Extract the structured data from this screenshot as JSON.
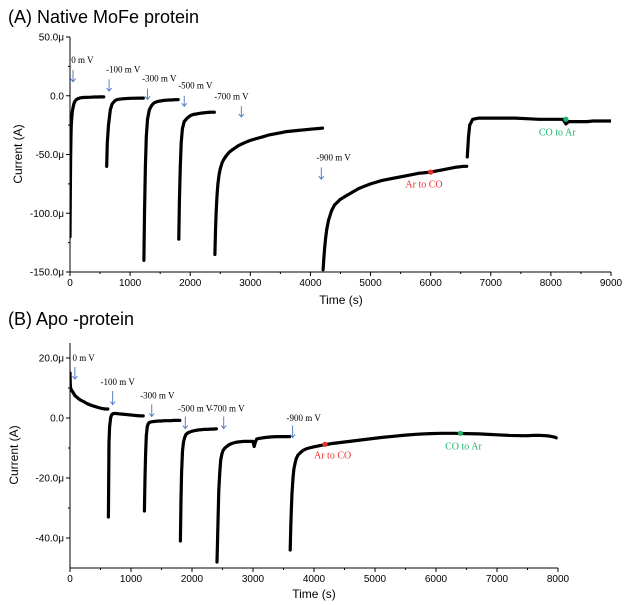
{
  "chart_data": [
    {
      "type": "scatter",
      "title": "(A) Native MoFe protein",
      "xlabel": "Time (s)",
      "ylabel": "Current (A)",
      "xlim": [
        0,
        9000
      ],
      "ylim": [
        -150,
        50
      ],
      "y_unit_suffix": "μ",
      "x_ticks": [
        "0",
        "1000",
        "2000",
        "3000",
        "4000",
        "5000",
        "6000",
        "7000",
        "8000",
        "9000"
      ],
      "y_ticks": [
        "-150.0μ",
        "-100.0μ",
        "-50.0μ",
        "0.0",
        "50.0μ"
      ],
      "y_tick_values": [
        -150,
        -100,
        -50,
        0,
        50
      ],
      "series_color": "#000000",
      "segments": [
        {
          "x": [
            0,
            3,
            6,
            10,
            15,
            20,
            30,
            40,
            55,
            70,
            85,
            100,
            130,
            160,
            200,
            250,
            300,
            350,
            400,
            450,
            500,
            550,
            560
          ],
          "y": [
            -120,
            -95,
            -75,
            -55,
            -38,
            -26,
            -18,
            -13,
            -9,
            -6,
            -4.5,
            -3.5,
            -2.5,
            -2,
            -1.6,
            -1.4,
            -1.3,
            -1.2,
            -1.1,
            -1.1,
            -1,
            -1,
            -1
          ]
        },
        {
          "x": [
            610,
            620,
            640,
            670,
            700,
            750,
            800,
            900,
            1000,
            1100,
            1200,
            1220
          ],
          "y": [
            -60,
            -40,
            -25,
            -12,
            -7,
            -4,
            -3,
            -2.5,
            -2.2,
            -2.1,
            -2,
            -2
          ]
        },
        {
          "x": [
            1230,
            1240,
            1255,
            1270,
            1290,
            1320,
            1360,
            1400,
            1450,
            1500,
            1550,
            1600,
            1650,
            1700,
            1750,
            1800
          ],
          "y": [
            -140,
            -100,
            -60,
            -35,
            -20,
            -12,
            -8,
            -6,
            -5,
            -4.5,
            -4,
            -3.8,
            -3.6,
            -3.5,
            -3.4,
            -3.3
          ]
        },
        {
          "x": [
            1810,
            1820,
            1835,
            1850,
            1870,
            1900,
            1950,
            2000,
            2050,
            2100,
            2150,
            2200,
            2250,
            2300,
            2350,
            2400
          ],
          "y": [
            -122,
            -90,
            -60,
            -40,
            -28,
            -22,
            -19,
            -17,
            -16,
            -15.5,
            -15,
            -14.7,
            -14.4,
            -14.2,
            -14,
            -14
          ]
        },
        {
          "x": [
            2410,
            2420,
            2430,
            2445,
            2460,
            2480,
            2500,
            2530,
            2560,
            2600,
            2650,
            2700,
            2800,
            2900,
            3000,
            3100,
            3200,
            3300,
            3400,
            3500,
            3600,
            3700,
            3800,
            3900,
            4000,
            4100,
            4200
          ],
          "y": [
            -135,
            -115,
            -100,
            -85,
            -75,
            -67,
            -62,
            -57,
            -54,
            -51,
            -48,
            -46,
            -42.5,
            -40,
            -38,
            -36.5,
            -35,
            -33.5,
            -32.5,
            -31.5,
            -30.5,
            -30,
            -29.5,
            -29,
            -28.5,
            -28,
            -27.5
          ]
        },
        {
          "x": [
            4210,
            4220,
            4235,
            4250,
            4270,
            4300,
            4350,
            4400,
            4500,
            4600,
            4700,
            4800,
            4900,
            5000,
            5200,
            5400,
            5600,
            5800,
            6000,
            6200,
            6400,
            6550,
            6600
          ],
          "y": [
            -148,
            -140,
            -130,
            -122,
            -114,
            -106,
            -98,
            -93,
            -88,
            -85,
            -82,
            -79,
            -77,
            -75,
            -72,
            -70,
            -68,
            -66,
            -65,
            -63,
            -61,
            -60,
            -60
          ]
        },
        {
          "x": [
            6610,
            6630,
            6650,
            6680,
            6700,
            6750,
            6800,
            6900,
            7000,
            7200,
            7400,
            7600,
            7800,
            8000,
            8200,
            8250,
            8270,
            8300,
            8400,
            8500,
            8600,
            8700,
            8800,
            8900,
            9000
          ],
          "y": [
            -52,
            -35,
            -25,
            -22,
            -20,
            -19.5,
            -19,
            -19,
            -19,
            -19,
            -19,
            -19.5,
            -20,
            -20,
            -20,
            -24,
            -23,
            -22,
            -22,
            -22,
            -22,
            -21.5,
            -21.5,
            -21.5,
            -21.5
          ]
        }
      ],
      "annotations": [
        {
          "text": "0 m V",
          "x": 20,
          "y": 28
        },
        {
          "text": "-100 m V",
          "x": 600,
          "y": 20
        },
        {
          "text": "-300 m V",
          "x": 1200,
          "y": 12
        },
        {
          "text": "-500 m V",
          "x": 1800,
          "y": 6
        },
        {
          "text": "-700 m V",
          "x": 2400,
          "y": -3
        },
        {
          "text": "-900 m V",
          "x": 4100,
          "y": -55
        }
      ],
      "arrows": [
        {
          "x": 50,
          "y1": 22,
          "y2": 12
        },
        {
          "x": 650,
          "y1": 14,
          "y2": 4
        },
        {
          "x": 1290,
          "y1": 6,
          "y2": -3
        },
        {
          "x": 1900,
          "y1": 0,
          "y2": -9
        },
        {
          "x": 2850,
          "y1": -9,
          "y2": -18
        },
        {
          "x": 4180,
          "y1": -61,
          "y2": -71
        }
      ],
      "gas_events": [
        {
          "text": "Ar to CO",
          "x": 6000,
          "y": -65,
          "label_x": 5580,
          "label_y": -78,
          "color": "#e8312a"
        },
        {
          "text": "CO to Ar",
          "x": 8250,
          "y": -20,
          "label_x": 7800,
          "label_y": -34,
          "color": "#1fb56b"
        }
      ]
    },
    {
      "type": "scatter",
      "title": "(B) Apo -protein",
      "xlabel": "Time (s)",
      "ylabel": "Current (A)",
      "xlim": [
        0,
        8000
      ],
      "ylim": [
        -50,
        25
      ],
      "y_unit_suffix": "μ",
      "x_ticks": [
        "0",
        "1000",
        "2000",
        "3000",
        "4000",
        "5000",
        "6000",
        "7000",
        "8000"
      ],
      "y_ticks": [
        "-40.0μ",
        "-20.0μ",
        "0.0",
        "20.0μ"
      ],
      "y_tick_values": [
        -40,
        -20,
        0,
        20
      ],
      "series_color": "#000000",
      "segments": [
        {
          "x": [
            0,
            5,
            10,
            20,
            35,
            50,
            80,
            120,
            170,
            220,
            280,
            340,
            400,
            460,
            520,
            580,
            620
          ],
          "y": [
            15,
            11,
            10,
            9.5,
            9,
            8.5,
            7.5,
            6.8,
            6,
            5.5,
            4.8,
            4.3,
            3.9,
            3.5,
            3.2,
            3,
            3
          ]
        },
        {
          "x": [
            630,
            640,
            650,
            665,
            680,
            700,
            730,
            760,
            800,
            850,
            900,
            950,
            1000,
            1050,
            1100,
            1150,
            1200
          ],
          "y": [
            -33,
            -8,
            -3,
            0,
            1,
            1.4,
            1.5,
            1.5,
            1.4,
            1.3,
            1.2,
            1.1,
            1,
            0.9,
            0.8,
            0.7,
            0.7
          ]
        },
        {
          "x": [
            1220,
            1230,
            1240,
            1250,
            1265,
            1280,
            1300,
            1330,
            1360,
            1400,
            1450,
            1500,
            1550,
            1600,
            1650,
            1700,
            1750,
            1800
          ],
          "y": [
            -31,
            -20,
            -12,
            -6,
            -3,
            -2,
            -1.5,
            -1.3,
            -1.2,
            -1.1,
            -1,
            -1,
            -0.9,
            -0.9,
            -0.9,
            -0.8,
            -0.8,
            -0.8
          ]
        },
        {
          "x": [
            1810,
            1820,
            1830,
            1845,
            1860,
            1880,
            1900,
            1930,
            1960,
            2000,
            2050,
            2100,
            2150,
            2200,
            2250,
            2300,
            2350,
            2400
          ],
          "y": [
            -41,
            -27,
            -18,
            -11,
            -8,
            -6.5,
            -5.5,
            -5,
            -4.7,
            -4.4,
            -4.2,
            -4,
            -3.9,
            -3.8,
            -3.8,
            -3.7,
            -3.7,
            -3.6
          ]
        },
        {
          "x": [
            2410,
            2420,
            2430,
            2440,
            2455,
            2470,
            2490,
            2510,
            2540,
            2570,
            2600,
            2650,
            2700,
            2750,
            2800,
            2850,
            2900,
            2950,
            3000,
            3020,
            3040,
            3060,
            3100,
            3200,
            3300,
            3400,
            3500,
            3600
          ],
          "y": [
            -48,
            -40,
            -32,
            -24,
            -18,
            -14,
            -12,
            -10.8,
            -10,
            -9.5,
            -9,
            -8.5,
            -8.2,
            -8,
            -7.9,
            -7.8,
            -7.8,
            -7.8,
            -7.8,
            -9.5,
            -8,
            -7,
            -6.8,
            -6.5,
            -6.3,
            -6.2,
            -6.2,
            -6.2
          ]
        },
        {
          "x": [
            3610,
            3620,
            3630,
            3640,
            3655,
            3670,
            3690,
            3710,
            3740,
            3780,
            3820,
            3870,
            3920,
            4000,
            4100,
            4200,
            4300,
            4500,
            4700,
            4900,
            5100,
            5300,
            5500,
            5700,
            5900,
            6100,
            6300,
            6500,
            6700,
            6900,
            7000,
            7200,
            7400,
            7500,
            7600,
            7700,
            7800,
            7850,
            7900,
            7950,
            7970
          ],
          "y": [
            -44,
            -36,
            -30,
            -25,
            -20,
            -17,
            -15,
            -13.5,
            -12.3,
            -11.5,
            -10.8,
            -10.3,
            -10,
            -9.6,
            -9.2,
            -8.8,
            -8.5,
            -8,
            -7.5,
            -7,
            -6.5,
            -6.1,
            -5.7,
            -5.4,
            -5.2,
            -5.1,
            -5.1,
            -5.2,
            -5.3,
            -5.5,
            -5.6,
            -5.8,
            -5.9,
            -5.9,
            -5.8,
            -5.8,
            -5.9,
            -6,
            -6.2,
            -6.4,
            -6.6
          ]
        }
      ],
      "annotations": [
        {
          "text": "0 m V",
          "x": 40,
          "y": 19
        },
        {
          "text": "-100 m V",
          "x": 500,
          "y": 11
        },
        {
          "text": "-300 m V",
          "x": 1150,
          "y": 6.5
        },
        {
          "text": "-500 m V",
          "x": 1770,
          "y": 2.2
        },
        {
          "text": "-700 m V",
          "x": 2300,
          "y": 2.2
        },
        {
          "text": "-900 m V",
          "x": 3550,
          "y": -1
        }
      ],
      "arrows": [
        {
          "x": 80,
          "y1": 17,
          "y2": 13
        },
        {
          "x": 700,
          "y1": 9,
          "y2": 4.5
        },
        {
          "x": 1340,
          "y1": 4.5,
          "y2": 0.5
        },
        {
          "x": 1890,
          "y1": 0.5,
          "y2": -3.5
        },
        {
          "x": 2520,
          "y1": 0.5,
          "y2": -3.5
        },
        {
          "x": 3650,
          "y1": -2.5,
          "y2": -6.5
        }
      ],
      "gas_events": [
        {
          "text": "Ar to CO",
          "x": 4180,
          "y": -8.8,
          "label_x": 4000,
          "label_y": -13.5,
          "color": "#e8312a"
        },
        {
          "text": "CO to Ar",
          "x": 6400,
          "y": -5.1,
          "label_x": 6150,
          "label_y": -10.5,
          "color": "#1fb56b"
        }
      ]
    }
  ]
}
